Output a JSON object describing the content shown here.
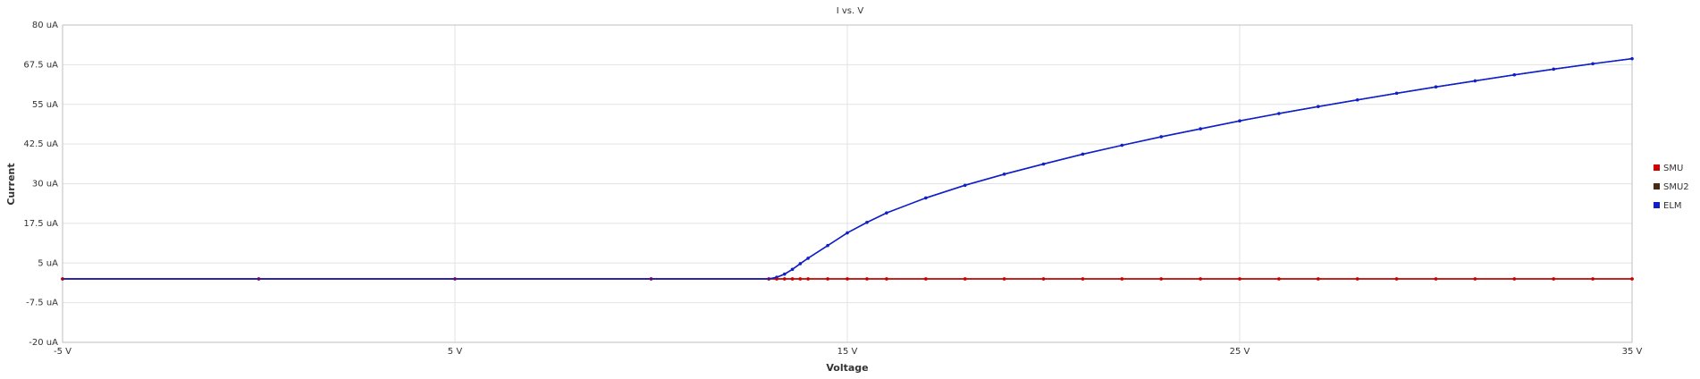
{
  "chart_data": {
    "type": "line",
    "title": "I vs. V",
    "xlabel": "Voltage",
    "ylabel": "Current",
    "xlim": [
      -5,
      35
    ],
    "ylim": [
      -20,
      80
    ],
    "x_ticks": [
      -5,
      5,
      15,
      25,
      35
    ],
    "x_tick_labels": [
      "-5 V",
      "5 V",
      "15 V",
      "25 V",
      "35 V"
    ],
    "y_ticks": [
      -20,
      -7.5,
      5,
      17.5,
      30,
      42.5,
      55,
      67.5,
      80
    ],
    "y_tick_labels": [
      "-20 uA",
      "-7.5 uA",
      "5 uA",
      "17.5 uA",
      "30 uA",
      "42.5 uA",
      "55 uA",
      "67.5 uA",
      "80 uA"
    ],
    "grid": true,
    "legend_position": "right",
    "x": [
      -5,
      0,
      5,
      10,
      13,
      13.2,
      13.4,
      13.6,
      13.8,
      14,
      14.5,
      15,
      15.5,
      16,
      17,
      18,
      19,
      20,
      21,
      22,
      23,
      24,
      25,
      26,
      27,
      28,
      29,
      30,
      31,
      32,
      33,
      34,
      35
    ],
    "series": [
      {
        "name": "SMU",
        "color": "#d00000",
        "values": [
          0,
          0,
          0,
          0,
          0,
          0,
          0,
          0,
          0,
          0,
          0,
          0,
          0,
          0,
          0,
          0,
          0,
          0,
          0,
          0,
          0,
          0,
          0,
          0,
          0,
          0,
          0,
          0,
          0,
          0,
          0,
          0,
          0
        ]
      },
      {
        "name": "SMU2",
        "color": "#4a2a10",
        "values": [
          0,
          0,
          0,
          0,
          0,
          0,
          0,
          0,
          0,
          0,
          0,
          0,
          0,
          0,
          0,
          0,
          0,
          0,
          0,
          0,
          0,
          0,
          0,
          0,
          0,
          0,
          0,
          0,
          0,
          0,
          0,
          0,
          0
        ]
      },
      {
        "name": "ELM",
        "color": "#1020c8",
        "values": [
          0,
          0,
          0,
          0,
          0,
          0.5,
          1.5,
          3,
          4.8,
          6.5,
          10.5,
          14.5,
          17.8,
          20.8,
          25.5,
          29.5,
          33,
          36.2,
          39.3,
          42.1,
          44.8,
          47.3,
          49.8,
          52.1,
          54.3,
          56.4,
          58.5,
          60.5,
          62.4,
          64.3,
          66.1,
          67.8,
          69.4
        ]
      }
    ]
  }
}
